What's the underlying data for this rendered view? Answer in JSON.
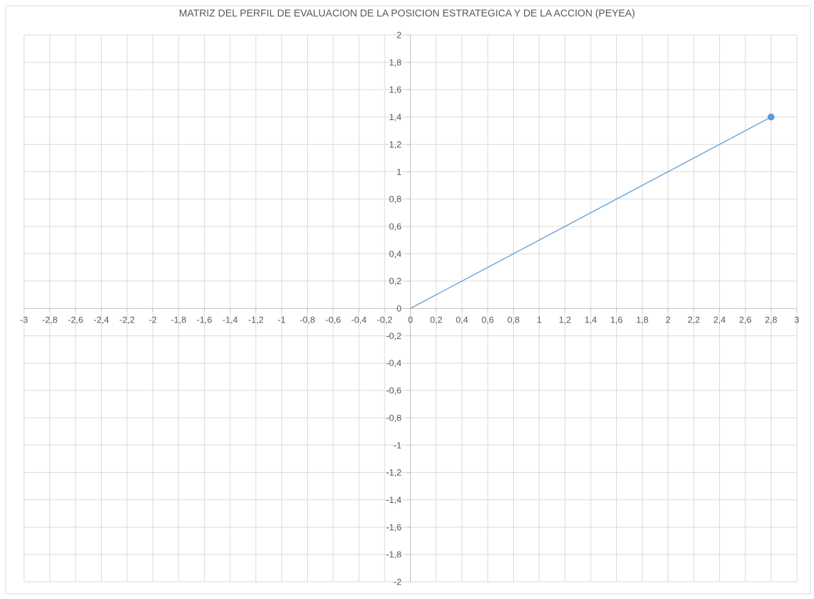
{
  "chart_data": {
    "type": "scatter",
    "title": "MATRIZ DEL PERFIL DE EVALUACION DE LA POSICION ESTRATEGICA Y DE LA ACCION (PEYEA)",
    "xlabel": "",
    "ylabel": "",
    "xlim": [
      -3,
      3
    ],
    "ylim": [
      -2,
      2
    ],
    "x_ticks": [
      "-3",
      "-2,8",
      "-2,6",
      "-2,4",
      "-2,2",
      "-2",
      "-1,8",
      "-1,6",
      "-1,4",
      "-1,2",
      "-1",
      "-0,8",
      "-0,6",
      "-0,4",
      "-0,2",
      "0",
      "0,2",
      "0,4",
      "0,6",
      "0,8",
      "1",
      "1,2",
      "1,4",
      "1,6",
      "1,8",
      "2",
      "2,2",
      "2,4",
      "2,6",
      "2,8",
      "3"
    ],
    "y_ticks": [
      "2",
      "1,8",
      "1,6",
      "1,4",
      "1,2",
      "1",
      "0,8",
      "0,6",
      "0,4",
      "0,2",
      "0",
      "-0,2",
      "-0,4",
      "-0,6",
      "-0,8",
      "-1",
      "-1,2",
      "-1,4",
      "-1,6",
      "-1,8",
      "-2"
    ],
    "grid": true,
    "series": [
      {
        "x": [
          0,
          2.8
        ],
        "y": [
          0,
          1.4
        ],
        "marker_at_end": true
      }
    ],
    "colors": {
      "series": "#5b9bd5",
      "grid": "#d9d9d9",
      "axis": "#bfbfbf",
      "text": "#595959"
    }
  }
}
